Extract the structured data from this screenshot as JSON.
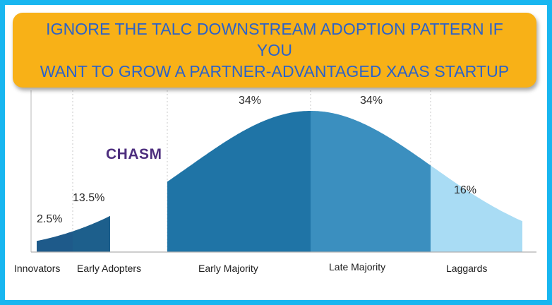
{
  "banner": {
    "title": "IGNORE THE TALC DOWNSTREAM ADOPTION PATTERN IF YOU\nWANT TO GROW A PARTNER-ADVANTAGED XAAS STARTUP"
  },
  "diagram": {
    "chasm_label": "CHASM",
    "segments": [
      {
        "name": "Innovators",
        "percent": "2.5%",
        "color": "#1e5a8a"
      },
      {
        "name": "Early Adopters",
        "percent": "13.5%",
        "color": "#1d5f8c"
      },
      {
        "name": "Early Majority",
        "percent": "34%",
        "color": "#1f74a6"
      },
      {
        "name": "Late Majority",
        "percent": "34%",
        "color": "#3b8fbf"
      },
      {
        "name": "Laggards",
        "percent": "16%",
        "color": "#a9dcf4"
      }
    ]
  }
}
